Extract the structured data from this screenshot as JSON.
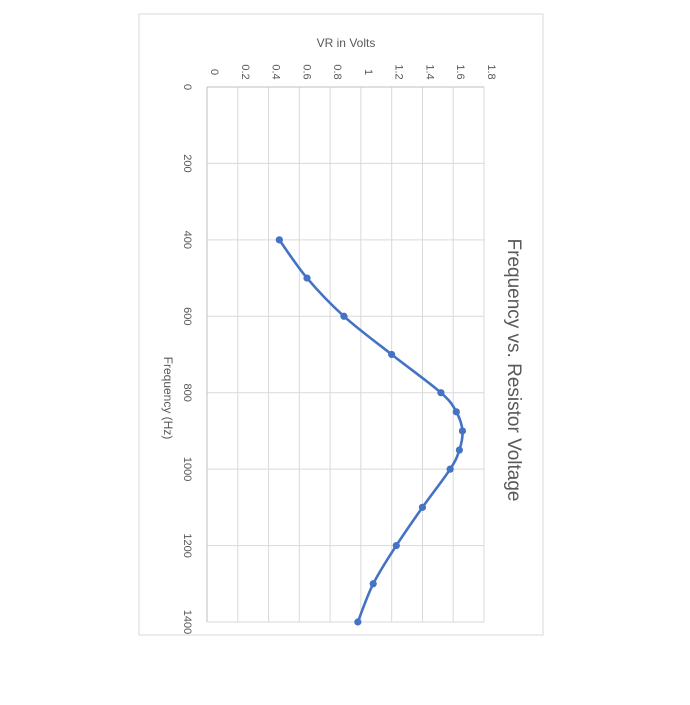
{
  "chart_data": {
    "type": "line",
    "title": "Frequency vs. Resistor Voltage",
    "xlabel": "Frequency (Hz)",
    "ylabel": "VR in Volts",
    "xlim": [
      0,
      1400
    ],
    "ylim": [
      0,
      1.8
    ],
    "x_ticks": [
      "0",
      "200",
      "400",
      "600",
      "800",
      "1000",
      "1200",
      "1400"
    ],
    "y_ticks": [
      "0",
      "0.2",
      "0.4",
      "0.6",
      "0.8",
      "1",
      "1.2",
      "1.4",
      "1.6",
      "1.8"
    ],
    "grid": true,
    "orientation": "rotated-90-clockwise",
    "colors": {
      "series": "#4472c4",
      "grid": "#d9d9d9",
      "text": "#595959",
      "frame": "#d9d9d9"
    },
    "series": [
      {
        "x": [
          400,
          500,
          600,
          700,
          800,
          850,
          900,
          950,
          1000,
          1100,
          1200,
          1300,
          1400
        ],
        "y": [
          0.47,
          0.65,
          0.89,
          1.2,
          1.52,
          1.62,
          1.66,
          1.64,
          1.58,
          1.4,
          1.23,
          1.08,
          0.98
        ]
      }
    ]
  }
}
